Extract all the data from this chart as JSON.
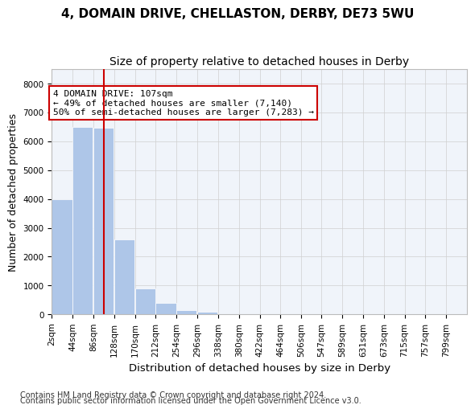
{
  "title_line1": "4, DOMAIN DRIVE, CHELLASTON, DERBY, DE73 5WU",
  "title_line2": "Size of property relative to detached houses in Derby",
  "xlabel": "Distribution of detached houses by size in Derby",
  "ylabel": "Number of detached properties",
  "bar_color": "#aec6e8",
  "bar_edge_color": "#aec6e8",
  "grid_color": "#d0d0d0",
  "background_color": "#f0f4fa",
  "vline_color": "#cc0000",
  "vline_x": 107,
  "annotation_text": "4 DOMAIN DRIVE: 107sqm\n← 49% of detached houses are smaller (7,140)\n50% of semi-detached houses are larger (7,283) →",
  "annotation_box_color": "#cc0000",
  "bin_edges": [
    2,
    44,
    86,
    128,
    170,
    212,
    254,
    296,
    338,
    380,
    422,
    464,
    506,
    547,
    589,
    631,
    673,
    715,
    757,
    799,
    841
  ],
  "bar_heights": [
    3980,
    6500,
    6480,
    2600,
    900,
    390,
    150,
    105,
    50,
    5,
    0,
    0,
    0,
    0,
    0,
    0,
    0,
    0,
    0,
    0
  ],
  "ylim": [
    0,
    8500
  ],
  "yticks": [
    0,
    1000,
    2000,
    3000,
    4000,
    5000,
    6000,
    7000,
    8000
  ],
  "footer_line1": "Contains HM Land Registry data © Crown copyright and database right 2024.",
  "footer_line2": "Contains public sector information licensed under the Open Government Licence v3.0.",
  "title_fontsize": 11,
  "subtitle_fontsize": 10,
  "axis_label_fontsize": 9,
  "tick_fontsize": 7.5,
  "footer_fontsize": 7
}
